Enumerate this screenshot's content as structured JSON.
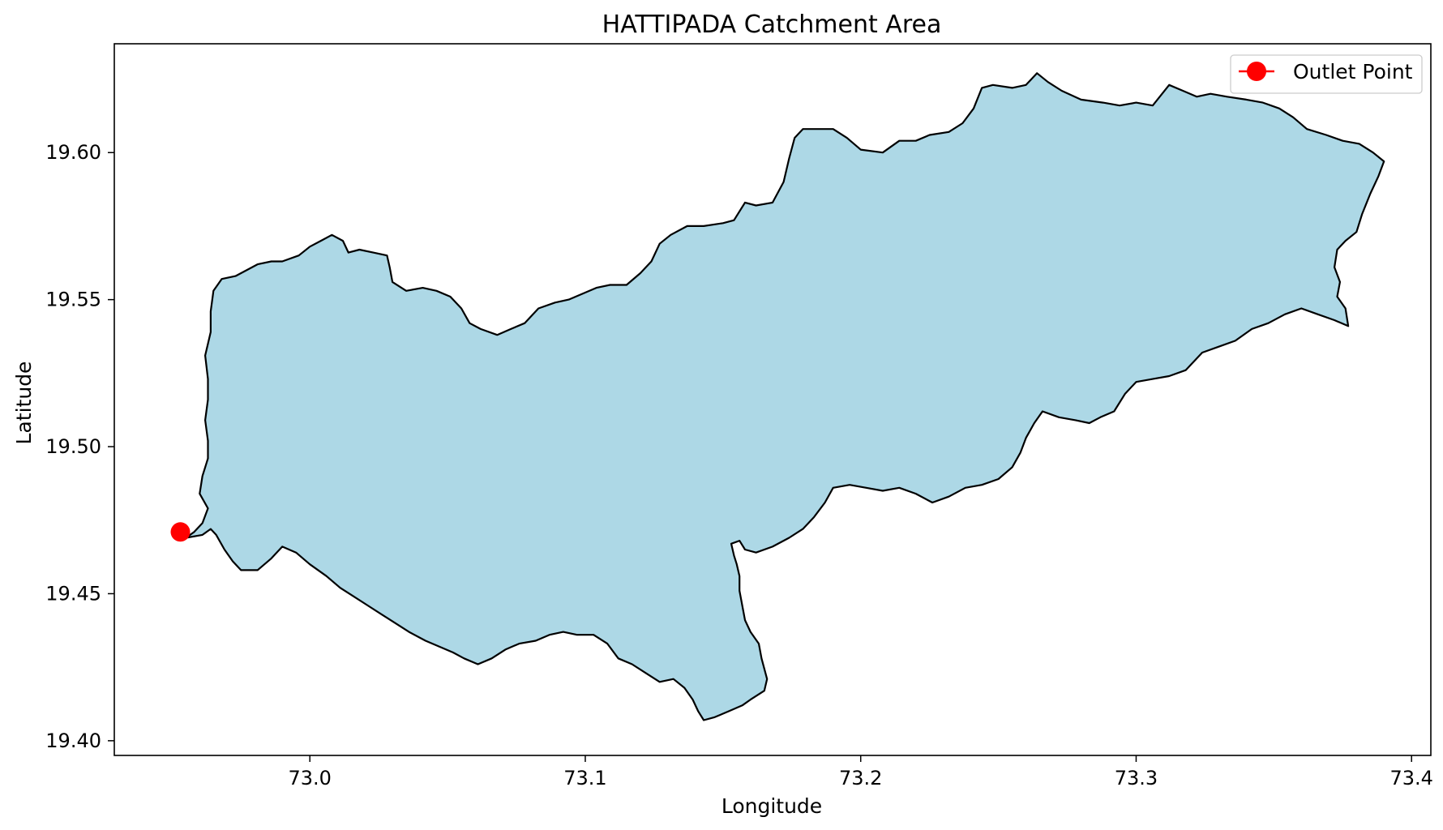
{
  "title": "HATTIPADA Catchment Area",
  "map": {
    "type": "area",
    "xlabel": "Longitude",
    "ylabel": "Latitude",
    "xlim": [
      72.929,
      73.407
    ],
    "ylim": [
      19.395,
      19.637
    ],
    "xticks": [
      73.0,
      73.1,
      73.2,
      73.3,
      73.4
    ],
    "xtick_labels": [
      "73.0",
      "73.1",
      "73.2",
      "73.3",
      "73.4"
    ],
    "yticks": [
      19.4,
      19.45,
      19.5,
      19.55,
      19.6
    ],
    "ytick_labels": [
      "19.40",
      "19.45",
      "19.50",
      "19.55",
      "19.60"
    ],
    "grid": false,
    "legend_position": "top-right",
    "catchment": {
      "fill_color": "#add8e6",
      "edge_color": "#000000",
      "boundary": [
        [
          72.955,
          19.469
        ],
        [
          72.961,
          19.47
        ],
        [
          72.964,
          19.472
        ],
        [
          72.966,
          19.47
        ],
        [
          72.969,
          19.465
        ],
        [
          72.972,
          19.461
        ],
        [
          72.975,
          19.458
        ],
        [
          72.981,
          19.458
        ],
        [
          72.986,
          19.462
        ],
        [
          72.99,
          19.466
        ],
        [
          72.995,
          19.464
        ],
        [
          73.0,
          19.46
        ],
        [
          73.006,
          19.456
        ],
        [
          73.011,
          19.452
        ],
        [
          73.016,
          19.449
        ],
        [
          73.021,
          19.446
        ],
        [
          73.026,
          19.443
        ],
        [
          73.031,
          19.44
        ],
        [
          73.036,
          19.437
        ],
        [
          73.042,
          19.434
        ],
        [
          73.047,
          19.432
        ],
        [
          73.052,
          19.43
        ],
        [
          73.056,
          19.428
        ],
        [
          73.061,
          19.426
        ],
        [
          73.066,
          19.428
        ],
        [
          73.071,
          19.431
        ],
        [
          73.076,
          19.433
        ],
        [
          73.082,
          19.434
        ],
        [
          73.087,
          19.436
        ],
        [
          73.092,
          19.437
        ],
        [
          73.097,
          19.436
        ],
        [
          73.103,
          19.436
        ],
        [
          73.108,
          19.433
        ],
        [
          73.112,
          19.428
        ],
        [
          73.117,
          19.426
        ],
        [
          73.122,
          19.423
        ],
        [
          73.127,
          19.42
        ],
        [
          73.132,
          19.421
        ],
        [
          73.136,
          19.418
        ],
        [
          73.139,
          19.414
        ],
        [
          73.141,
          19.41
        ],
        [
          73.143,
          19.407
        ],
        [
          73.147,
          19.408
        ],
        [
          73.152,
          19.41
        ],
        [
          73.157,
          19.412
        ],
        [
          73.16,
          19.414
        ],
        [
          73.165,
          19.417
        ],
        [
          73.166,
          19.421
        ],
        [
          73.164,
          19.428
        ],
        [
          73.163,
          19.433
        ],
        [
          73.16,
          19.437
        ],
        [
          73.158,
          19.441
        ],
        [
          73.157,
          19.446
        ],
        [
          73.156,
          19.451
        ],
        [
          73.156,
          19.456
        ],
        [
          73.155,
          19.46
        ],
        [
          73.154,
          19.463
        ],
        [
          73.153,
          19.467
        ],
        [
          73.156,
          19.468
        ],
        [
          73.158,
          19.465
        ],
        [
          73.162,
          19.464
        ],
        [
          73.168,
          19.466
        ],
        [
          73.174,
          19.469
        ],
        [
          73.179,
          19.472
        ],
        [
          73.183,
          19.476
        ],
        [
          73.187,
          19.481
        ],
        [
          73.19,
          19.486
        ],
        [
          73.196,
          19.487
        ],
        [
          73.202,
          19.486
        ],
        [
          73.208,
          19.485
        ],
        [
          73.214,
          19.486
        ],
        [
          73.22,
          19.484
        ],
        [
          73.226,
          19.481
        ],
        [
          73.232,
          19.483
        ],
        [
          73.238,
          19.486
        ],
        [
          73.244,
          19.487
        ],
        [
          73.25,
          19.489
        ],
        [
          73.255,
          19.493
        ],
        [
          73.258,
          19.498
        ],
        [
          73.26,
          19.503
        ],
        [
          73.263,
          19.508
        ],
        [
          73.266,
          19.512
        ],
        [
          73.272,
          19.51
        ],
        [
          73.278,
          19.509
        ],
        [
          73.283,
          19.508
        ],
        [
          73.287,
          19.51
        ],
        [
          73.292,
          19.512
        ],
        [
          73.296,
          19.518
        ],
        [
          73.3,
          19.522
        ],
        [
          73.306,
          19.523
        ],
        [
          73.312,
          19.524
        ],
        [
          73.318,
          19.526
        ],
        [
          73.324,
          19.532
        ],
        [
          73.33,
          19.534
        ],
        [
          73.336,
          19.536
        ],
        [
          73.342,
          19.54
        ],
        [
          73.348,
          19.542
        ],
        [
          73.354,
          19.545
        ],
        [
          73.36,
          19.547
        ],
        [
          73.366,
          19.545
        ],
        [
          73.372,
          19.543
        ],
        [
          73.377,
          19.541
        ],
        [
          73.376,
          19.547
        ],
        [
          73.373,
          19.551
        ],
        [
          73.374,
          19.556
        ],
        [
          73.372,
          19.561
        ],
        [
          73.373,
          19.567
        ],
        [
          73.376,
          19.57
        ],
        [
          73.38,
          19.573
        ],
        [
          73.382,
          19.579
        ],
        [
          73.385,
          19.586
        ],
        [
          73.388,
          19.592
        ],
        [
          73.39,
          19.597
        ],
        [
          73.386,
          19.6
        ],
        [
          73.381,
          19.603
        ],
        [
          73.375,
          19.604
        ],
        [
          73.369,
          19.606
        ],
        [
          73.362,
          19.608
        ],
        [
          73.357,
          19.612
        ],
        [
          73.352,
          19.615
        ],
        [
          73.346,
          19.617
        ],
        [
          73.34,
          19.618
        ],
        [
          73.333,
          19.619
        ],
        [
          73.327,
          19.62
        ],
        [
          73.322,
          19.619
        ],
        [
          73.317,
          19.621
        ],
        [
          73.312,
          19.623
        ],
        [
          73.306,
          19.616
        ],
        [
          73.3,
          19.617
        ],
        [
          73.294,
          19.616
        ],
        [
          73.288,
          19.617
        ],
        [
          73.28,
          19.618
        ],
        [
          73.273,
          19.621
        ],
        [
          73.268,
          19.624
        ],
        [
          73.264,
          19.627
        ],
        [
          73.26,
          19.623
        ],
        [
          73.255,
          19.622
        ],
        [
          73.248,
          19.623
        ],
        [
          73.244,
          19.622
        ],
        [
          73.241,
          19.615
        ],
        [
          73.237,
          19.61
        ],
        [
          73.232,
          19.607
        ],
        [
          73.225,
          19.606
        ],
        [
          73.22,
          19.604
        ],
        [
          73.214,
          19.604
        ],
        [
          73.208,
          19.6
        ],
        [
          73.2,
          19.601
        ],
        [
          73.195,
          19.605
        ],
        [
          73.19,
          19.608
        ],
        [
          73.185,
          19.608
        ],
        [
          73.179,
          19.608
        ],
        [
          73.176,
          19.605
        ],
        [
          73.174,
          19.598
        ],
        [
          73.172,
          19.59
        ],
        [
          73.168,
          19.583
        ],
        [
          73.162,
          19.582
        ],
        [
          73.158,
          19.583
        ],
        [
          73.154,
          19.577
        ],
        [
          73.15,
          19.576
        ],
        [
          73.143,
          19.575
        ],
        [
          73.137,
          19.575
        ],
        [
          73.131,
          19.572
        ],
        [
          73.127,
          19.569
        ],
        [
          73.124,
          19.563
        ],
        [
          73.12,
          19.559
        ],
        [
          73.115,
          19.555
        ],
        [
          73.109,
          19.555
        ],
        [
          73.104,
          19.554
        ],
        [
          73.099,
          19.552
        ],
        [
          73.094,
          19.55
        ],
        [
          73.089,
          19.549
        ],
        [
          73.083,
          19.547
        ],
        [
          73.078,
          19.542
        ],
        [
          73.073,
          19.54
        ],
        [
          73.068,
          19.538
        ],
        [
          73.062,
          19.54
        ],
        [
          73.058,
          19.542
        ],
        [
          73.055,
          19.547
        ],
        [
          73.051,
          19.551
        ],
        [
          73.046,
          19.553
        ],
        [
          73.041,
          19.554
        ],
        [
          73.035,
          19.553
        ],
        [
          73.03,
          19.556
        ],
        [
          73.029,
          19.561
        ],
        [
          73.028,
          19.565
        ],
        [
          73.023,
          19.566
        ],
        [
          73.018,
          19.567
        ],
        [
          73.014,
          19.566
        ],
        [
          73.012,
          19.57
        ],
        [
          73.008,
          19.572
        ],
        [
          73.004,
          19.57
        ],
        [
          73.0,
          19.568
        ],
        [
          72.996,
          19.565
        ],
        [
          72.99,
          19.563
        ],
        [
          72.986,
          19.563
        ],
        [
          72.981,
          19.562
        ],
        [
          72.977,
          19.56
        ],
        [
          72.973,
          19.558
        ],
        [
          72.968,
          19.557
        ],
        [
          72.965,
          19.553
        ],
        [
          72.964,
          19.546
        ],
        [
          72.964,
          19.539
        ],
        [
          72.962,
          19.531
        ],
        [
          72.963,
          19.523
        ],
        [
          72.963,
          19.516
        ],
        [
          72.962,
          19.509
        ],
        [
          72.963,
          19.502
        ],
        [
          72.963,
          19.496
        ],
        [
          72.961,
          19.49
        ],
        [
          72.96,
          19.484
        ],
        [
          72.963,
          19.479
        ],
        [
          72.961,
          19.474
        ],
        [
          72.958,
          19.471
        ]
      ]
    },
    "outlet": {
      "label": "Outlet Point",
      "lon": 72.953,
      "lat": 19.471,
      "color": "#ff0000"
    }
  }
}
